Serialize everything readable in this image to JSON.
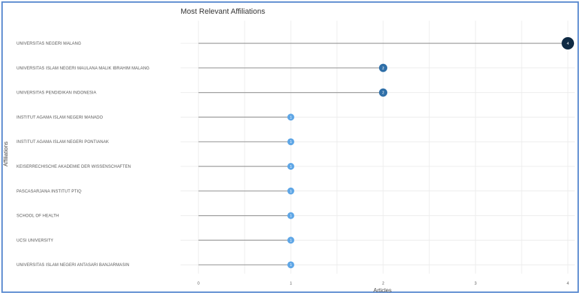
{
  "chart_data": {
    "type": "lollipop",
    "title": "Most Relevant Affiliations",
    "xlabel": "Articles",
    "ylabel": "Affiliations",
    "xlim": [
      0,
      4
    ],
    "x_ticks": [
      0,
      1,
      2,
      3,
      4
    ],
    "grid": true,
    "categories": [
      "UNIVERSITAS NEGERI MALANG",
      "UNIVERSITAS ISLAM NEGERI MAULANA MALIK IBRAHIM MALANG",
      "UNIVERSITAS PENDIDIKAN INDONESIA",
      "INSTITUT AGAMA ISLAM NEGERI MANADO",
      "INSTITUT AGAMA ISLAM NEGERI PONTIANAK",
      "KEISERRECHISCHE AKADEMIE DER WISSENSCHAFTEN",
      "PASCASARJANA INSTITUT PTIQ",
      "SCHOOL OF HEALTH",
      "UCSI UNIVERSITY",
      "UNIVERSITAS ISLAM NEGERI ANTASARI BANJARMASIN"
    ],
    "values": [
      4,
      2,
      2,
      1,
      1,
      1,
      1,
      1,
      1,
      1
    ],
    "colors": {
      "low": "#5ea6e6",
      "mid": "#2f6fa8",
      "high": "#0f2a44",
      "segment": "#9a9a9a",
      "grid": "#ececec"
    }
  }
}
